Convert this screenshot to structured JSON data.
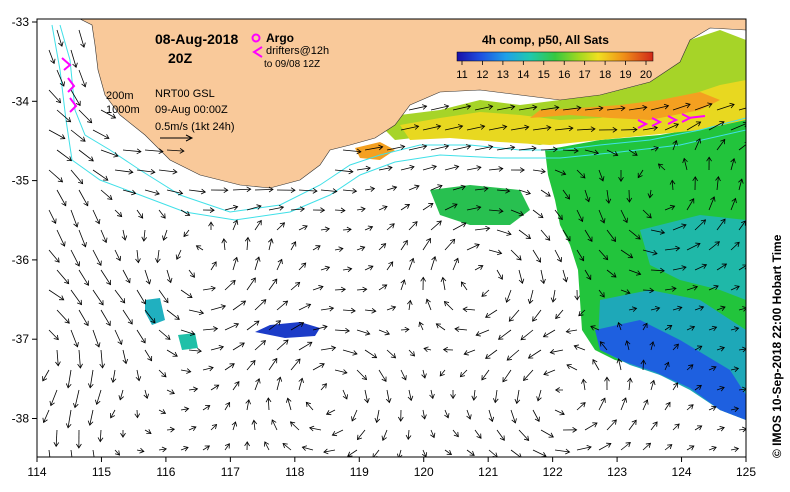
{
  "header": {
    "date": "08-Aug-2018",
    "time": "20Z",
    "argo_label": "Argo",
    "drifters_label": "drifters@12h",
    "drifters_to": "to 09/08 12Z"
  },
  "info": {
    "depth_200": "200m",
    "depth_1000": "1000m",
    "product": "NRT00 GSL",
    "valid_time": "09-Aug 00:00Z",
    "scale": "0.5m/s (1kt 24h)"
  },
  "colorbar": {
    "title": "4h comp, p50, All Sats",
    "ticks": [
      "11",
      "12",
      "13",
      "14",
      "15",
      "16",
      "17",
      "18",
      "19",
      "20"
    ],
    "range": [
      11,
      20
    ]
  },
  "axes": {
    "lon_ticks": [
      "114",
      "115",
      "116",
      "117",
      "118",
      "119",
      "120",
      "121",
      "122",
      "123",
      "124",
      "125"
    ],
    "lat_ticks": [
      "-33",
      "-34",
      "-35",
      "-36",
      "-37",
      "-38"
    ]
  },
  "credit": "© IMOS 10-Sep-2018 22:00 Hobart Time",
  "colors": {
    "land": "#f9c99a",
    "isobath": "#40e0e8",
    "drifter": "#ff00ff",
    "argo": "#ff00ff"
  },
  "icons": {
    "argo": "argo-float-icon",
    "drifter": "drifter-chevron-icon"
  }
}
